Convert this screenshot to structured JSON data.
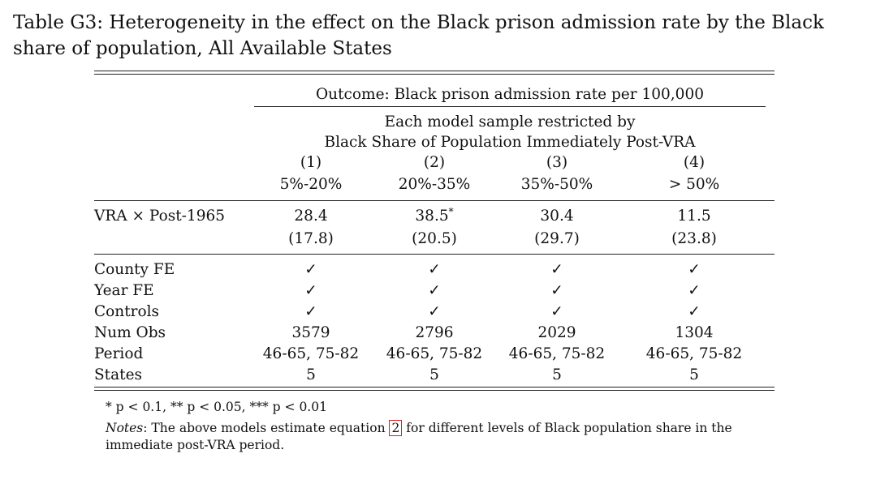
{
  "title": "Table G3: Heterogeneity in the effect on the Black prison admission rate by the Black share of population, All Available States",
  "header": {
    "outcome": "Outcome: Black prison admission rate per 100,000",
    "restriction_line1": "Each model sample restricted by",
    "restriction_line2": "Black Share of Population Immediately Post-VRA",
    "columns": [
      {
        "num": "(1)",
        "range": "5%-20%"
      },
      {
        "num": "(2)",
        "range": "20%-35%"
      },
      {
        "num": "(3)",
        "range": "35%-50%"
      },
      {
        "num": "(4)",
        "range": "> 50%"
      }
    ]
  },
  "coef_row": {
    "label": "VRA × Post-1965",
    "estimates": [
      "28.4",
      "38.5",
      "30.4",
      "11.5"
    ],
    "stars": [
      "",
      "*",
      "",
      ""
    ],
    "ses": [
      "(17.8)",
      "(20.5)",
      "(29.7)",
      "(23.8)"
    ]
  },
  "rows": [
    {
      "label": "County FE",
      "values": [
        "✓",
        "✓",
        "✓",
        "✓"
      ]
    },
    {
      "label": "Year FE",
      "values": [
        "✓",
        "✓",
        "✓",
        "✓"
      ]
    },
    {
      "label": "Controls",
      "values": [
        "✓",
        "✓",
        "✓",
        "✓"
      ]
    },
    {
      "label": "Num Obs",
      "values": [
        "3579",
        "2796",
        "2029",
        "1304"
      ]
    },
    {
      "label": "Period",
      "values": [
        "46-65, 75-82",
        "46-65, 75-82",
        "46-65, 75-82",
        "46-65, 75-82"
      ]
    },
    {
      "label": "States",
      "values": [
        "5",
        "5",
        "5",
        "5"
      ]
    }
  ],
  "footnotes": {
    "significance": "* p < 0.1, ** p < 0.05, *** p < 0.01",
    "notes_label": "Notes",
    "notes_before": ": The above models estimate equation ",
    "equation_ref": "2",
    "notes_after": " for different levels of Black population share in the immediate post-VRA period."
  }
}
